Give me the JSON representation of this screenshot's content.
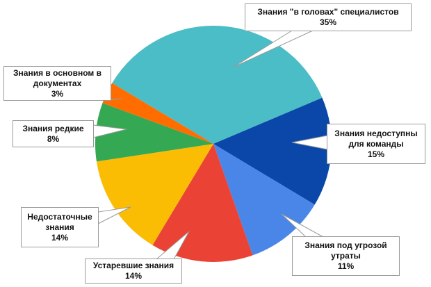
{
  "chart_data": {
    "type": "pie",
    "categories": [
      "Знания \"в головах\" специалистов",
      "Знания недоступны для команды",
      "Знания под угрозой утраты",
      "Устаревшие знания",
      "Недостаточные знания",
      "Знания редкие",
      "Знания в основном в документах"
    ],
    "values": [
      35,
      15,
      11,
      14,
      14,
      8,
      3
    ],
    "value_labels": [
      "35%",
      "15%",
      "11%",
      "14%",
      "14%",
      "8%",
      "3%"
    ],
    "colors": [
      "#4bbdc7",
      "#0b47a8",
      "#4a86e8",
      "#ea4335",
      "#fbbc04",
      "#34a853",
      "#ff6d01"
    ]
  }
}
